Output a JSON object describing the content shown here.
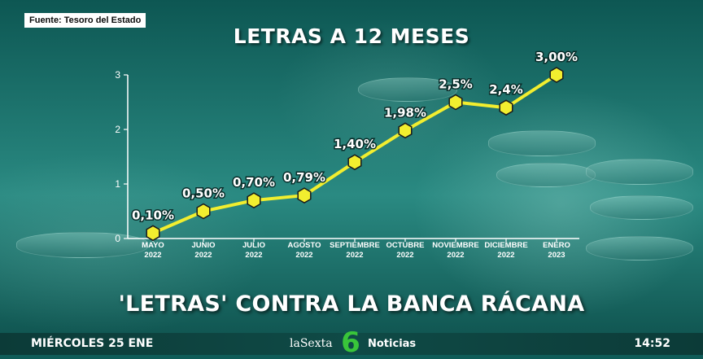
{
  "source": "Fuente: Tesoro del Estado",
  "title": "LETRAS A 12 MESES",
  "headline": "'LETRAS' CONTRA LA BANCA RÁCANA",
  "ticker": {
    "date": "MIÉRCOLES 25 ENE",
    "brand_name": "laSexta",
    "brand_number": "6",
    "brand_section": "Noticias",
    "time": "14:52"
  },
  "colors": {
    "line": "#f2ee2f",
    "marker_fill": "#f2ee2f",
    "marker_stroke": "#1a1a1a",
    "axis": "#ffffff",
    "brand_green": "#39c53a"
  },
  "chart_data": {
    "type": "line",
    "title": "LETRAS A 12 MESES",
    "xlabel": "",
    "ylabel": "",
    "ylim": [
      0,
      3
    ],
    "yticks": [
      "0",
      "1",
      "2",
      "3"
    ],
    "grid": false,
    "categories": [
      [
        "MAYO",
        "2022"
      ],
      [
        "JUNIO",
        "2022"
      ],
      [
        "JULIO",
        "2022"
      ],
      [
        "AGOSTO",
        "2022"
      ],
      [
        "SEPTIEMBRE",
        "2022"
      ],
      [
        "OCTUBRE",
        "2022"
      ],
      [
        "NOVIEMBRE",
        "2022"
      ],
      [
        "DICIEMBRE",
        "2022"
      ],
      [
        "ENERO",
        "2023"
      ]
    ],
    "values": [
      0.1,
      0.5,
      0.7,
      0.79,
      1.4,
      1.98,
      2.5,
      2.4,
      3.0
    ],
    "labels": [
      "0,10%",
      "0,50%",
      "0,70%",
      "0,79%",
      "1,40%",
      "1,98%",
      "2,5%",
      "2,4%",
      "3,00%"
    ],
    "marker": "hexagon"
  }
}
